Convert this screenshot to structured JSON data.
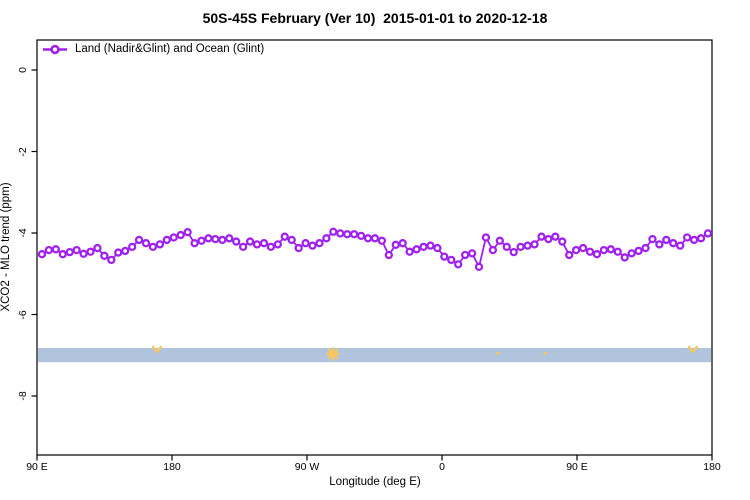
{
  "title": "50S-45S February (Ver 10)  2015-01-01 to 2020-12-18",
  "chart_data": {
    "type": "line",
    "title": "50S-45S February (Ver 10)  2015-01-01 to 2020-12-18",
    "xlabel": "Longitude (deg E)",
    "ylabel": "XCO2 - MLO trend (ppm)",
    "x_axis_wraps": "90E to 180 to 90W to 0 to 90E to 180",
    "xlim_axis_units": [
      90,
      540
    ],
    "ylim": [
      -9.4,
      0.7
    ],
    "grid": false,
    "legend_position": "top-left-inside",
    "yticks": [
      0,
      -2,
      -4,
      -6,
      -8
    ],
    "xticks": [
      {
        "label": "90 E",
        "lon": 90
      },
      {
        "label": "180",
        "lon": 180
      },
      {
        "label": "90 W",
        "lon": 270
      },
      {
        "label": "0",
        "lon": 360
      },
      {
        "label": "90 E",
        "lon": 450
      },
      {
        "label": "180",
        "lon": 540
      }
    ],
    "series": [
      {
        "name": "Land (Nadir&Glint) and Ocean (Glint)",
        "color": "#A020F0",
        "marker": "open-circle",
        "x_start_lon": 93.3,
        "x_step_lon": 4.625,
        "values": [
          -4.52,
          -4.42,
          -4.4,
          -4.52,
          -4.47,
          -4.42,
          -4.51,
          -4.46,
          -4.37,
          -4.56,
          -4.66,
          -4.48,
          -4.44,
          -4.34,
          -4.17,
          -4.25,
          -4.34,
          -4.28,
          -4.17,
          -4.11,
          -4.05,
          -3.98,
          -4.25,
          -4.19,
          -4.13,
          -4.15,
          -4.17,
          -4.13,
          -4.21,
          -4.34,
          -4.21,
          -4.28,
          -4.25,
          -4.34,
          -4.28,
          -4.09,
          -4.17,
          -4.37,
          -4.25,
          -4.31,
          -4.25,
          -4.13,
          -3.97,
          -4.01,
          -4.03,
          -4.03,
          -4.07,
          -4.13,
          -4.13,
          -4.19,
          -4.54,
          -4.29,
          -4.25,
          -4.46,
          -4.4,
          -4.34,
          -4.31,
          -4.37,
          -4.58,
          -4.66,
          -4.77,
          -4.54,
          -4.5,
          -4.83,
          -4.11,
          -4.42,
          -4.19,
          -4.34,
          -4.47,
          -4.34,
          -4.31,
          -4.28,
          -4.09,
          -4.15,
          -4.09,
          -4.21,
          -4.54,
          -4.42,
          -4.37,
          -4.46,
          -4.52,
          -4.42,
          -4.4,
          -4.46,
          -4.6,
          -4.5,
          -4.44,
          -4.37,
          -4.15,
          -4.28,
          -4.17,
          -4.25,
          -4.31,
          -4.11,
          -4.17,
          -4.13,
          -4.01
        ]
      }
    ],
    "band": {
      "color": "#B0C4DE",
      "y_from": -6.82,
      "y_to": -7.17
    },
    "band_marks": {
      "color": "#F6C764",
      "items": [
        {
          "shape": "chevron",
          "lon": 170.0
        },
        {
          "shape": "asterisk",
          "lon": 287.3
        },
        {
          "shape": "dot",
          "lon": 397.3
        },
        {
          "shape": "dot",
          "lon": 428.7
        },
        {
          "shape": "chevron",
          "lon": 527.3
        }
      ]
    }
  }
}
